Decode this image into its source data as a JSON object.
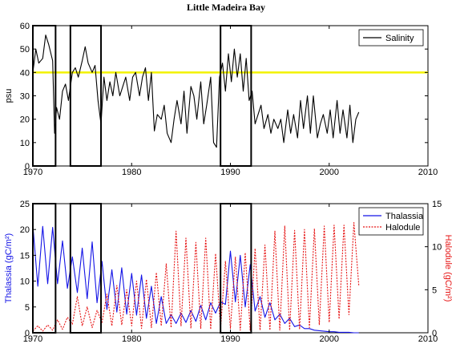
{
  "chart_data": [
    {
      "type": "line",
      "title": "Little Madeira Bay",
      "ylabel": "psu",
      "xlim": [
        1970,
        2010
      ],
      "ylim": [
        0,
        60
      ],
      "xticks": [
        "1970",
        "1980",
        "1990",
        "2000",
        "2010"
      ],
      "yticks": [
        "0",
        "10",
        "20",
        "30",
        "40",
        "50",
        "60"
      ],
      "legend": "top-right",
      "reference_line": {
        "y": 40,
        "color": "#f2f200"
      },
      "highlight_periods": [
        [
          1970,
          1972.3
        ],
        [
          1973.8,
          1976.9
        ],
        [
          1989.0,
          1992.1
        ]
      ],
      "series": [
        {
          "name": "Salinity",
          "color": "#000000",
          "x": [
            1970.0,
            1970.3,
            1970.6,
            1971.0,
            1971.3,
            1971.6,
            1972.0,
            1972.2,
            1972.4,
            1972.7,
            1973.0,
            1973.3,
            1973.6,
            1974.0,
            1974.3,
            1974.6,
            1975.0,
            1975.3,
            1975.6,
            1976.0,
            1976.3,
            1976.6,
            1976.9,
            1977.2,
            1977.5,
            1977.8,
            1978.1,
            1978.4,
            1978.8,
            1979.1,
            1979.4,
            1979.8,
            1980.1,
            1980.4,
            1980.8,
            1981.1,
            1981.4,
            1981.7,
            1982.0,
            1982.3,
            1982.6,
            1983.0,
            1983.3,
            1983.6,
            1984.0,
            1984.3,
            1984.6,
            1985.0,
            1985.3,
            1985.6,
            1986.0,
            1986.3,
            1986.6,
            1987.0,
            1987.3,
            1987.6,
            1988.0,
            1988.3,
            1988.6,
            1988.9,
            1989.2,
            1989.5,
            1989.8,
            1990.1,
            1990.4,
            1990.7,
            1991.0,
            1991.3,
            1991.6,
            1991.9,
            1992.2,
            1992.5,
            1992.8,
            1993.1,
            1993.4,
            1993.8,
            1994.1,
            1994.4,
            1994.8,
            1995.1,
            1995.4,
            1995.8,
            1996.1,
            1996.4,
            1996.8,
            1997.1,
            1997.4,
            1997.8,
            1998.1,
            1998.4,
            1998.8,
            1999.1,
            1999.4,
            1999.8,
            2000.1,
            2000.4,
            2000.8,
            2001.1,
            2001.4,
            2001.8,
            2002.1,
            2002.4,
            2002.7,
            2003.0
          ],
          "y": [
            40,
            50,
            44,
            46,
            56,
            52,
            45,
            14,
            25,
            20,
            32,
            35,
            28,
            40,
            42,
            38,
            45,
            51,
            44,
            40,
            43,
            28,
            18,
            38,
            28,
            36,
            30,
            40,
            30,
            34,
            38,
            28,
            38,
            40,
            30,
            38,
            42,
            28,
            40,
            15,
            22,
            20,
            26,
            14,
            10,
            20,
            28,
            18,
            32,
            14,
            34,
            30,
            20,
            36,
            18,
            26,
            38,
            10,
            8,
            38,
            44,
            32,
            48,
            36,
            50,
            38,
            48,
            32,
            46,
            28,
            32,
            18,
            22,
            26,
            16,
            22,
            14,
            20,
            16,
            20,
            10,
            24,
            14,
            22,
            12,
            28,
            16,
            30,
            14,
            30,
            12,
            18,
            22,
            14,
            24,
            12,
            28,
            14,
            24,
            12,
            26,
            10,
            20,
            23
          ]
        }
      ]
    },
    {
      "type": "line",
      "title": "",
      "ylabel": "Thalassia (gC/m²)",
      "y2label": "Halodule (gC/m²)",
      "xlim": [
        1970,
        2010
      ],
      "ylim": [
        0,
        25
      ],
      "y2lim": [
        0,
        15
      ],
      "xticks": [
        "1970",
        "1980",
        "1990",
        "2000",
        "2010"
      ],
      "yticks": [
        "0",
        "5",
        "10",
        "15",
        "20",
        "25"
      ],
      "y2ticks": [
        "0",
        "5",
        "10",
        "15"
      ],
      "legend": "top-right",
      "highlight_periods": [
        [
          1970,
          1972.3
        ],
        [
          1973.8,
          1976.9
        ],
        [
          1989.0,
          1992.1
        ]
      ],
      "series": [
        {
          "name": "Thalassia",
          "color": "#1414e6",
          "axis": "left",
          "x": [
            1970,
            1970.5,
            1971,
            1971.5,
            1972,
            1972.5,
            1973,
            1973.5,
            1974,
            1974.5,
            1975,
            1975.5,
            1976,
            1976.5,
            1977,
            1977.5,
            1978,
            1978.5,
            1979,
            1979.5,
            1980,
            1980.5,
            1981,
            1981.5,
            1982,
            1982.5,
            1983,
            1983.5,
            1984,
            1984.5,
            1985,
            1985.5,
            1986,
            1986.5,
            1987,
            1987.5,
            1988,
            1988.5,
            1989,
            1989.5,
            1990,
            1990.5,
            1991,
            1991.5,
            1992,
            1992.5,
            1993,
            1993.5,
            1994,
            1994.5,
            1995,
            1995.5,
            1996,
            1996.5,
            1997,
            1997.5,
            1998,
            1998.5,
            1999,
            1999.5,
            2000,
            2000.5,
            2001,
            2001.5,
            2002,
            2002.5,
            2003
          ],
          "y": [
            20.8,
            9.0,
            20.6,
            9.5,
            20.4,
            9.5,
            17.8,
            8.6,
            14.7,
            7.8,
            16.4,
            6.6,
            17.6,
            5.8,
            13.8,
            4.5,
            12.2,
            4.0,
            12.6,
            3.6,
            11.5,
            3.4,
            11.2,
            2.8,
            9.0,
            1.8,
            7.0,
            1.8,
            3.5,
            1.8,
            3.8,
            2.0,
            4.3,
            2.2,
            5.3,
            2.5,
            5.8,
            3.8,
            6.0,
            5.5,
            15.8,
            6.0,
            15.0,
            5.0,
            13.2,
            4.2,
            7.0,
            3.0,
            5.8,
            2.5,
            3.6,
            1.8,
            2.8,
            1.2,
            1.5,
            0.8,
            0.8,
            0.5,
            0.4,
            0.3,
            0.2,
            0.2,
            0.1,
            0.1,
            0.1,
            0.0,
            0.0
          ]
        },
        {
          "name": "Halodule",
          "color": "#e61414",
          "axis": "right",
          "x": [
            1970,
            1970.5,
            1971,
            1971.5,
            1972,
            1972.5,
            1973,
            1973.5,
            1974,
            1974.5,
            1975,
            1975.5,
            1976,
            1976.5,
            1977,
            1977.5,
            1978,
            1978.5,
            1979,
            1979.5,
            1980,
            1980.5,
            1981,
            1981.5,
            1982,
            1982.5,
            1983,
            1983.5,
            1984,
            1984.5,
            1985,
            1985.5,
            1986,
            1986.5,
            1987,
            1987.5,
            1988,
            1988.5,
            1989,
            1989.5,
            1990,
            1990.5,
            1991,
            1991.5,
            1992,
            1992.5,
            1993,
            1993.5,
            1994,
            1994.5,
            1995,
            1995.5,
            1996,
            1996.5,
            1997,
            1997.5,
            1998,
            1998.5,
            1999,
            1999.5,
            2000,
            2000.5,
            2001,
            2001.5,
            2002,
            2002.5,
            2003
          ],
          "y": [
            0.2,
            0.8,
            0.2,
            0.9,
            0.3,
            1.5,
            0.4,
            1.8,
            1.0,
            4.2,
            0.8,
            3.0,
            0.6,
            2.6,
            1.2,
            4.5,
            0.8,
            5.5,
            0.9,
            5.0,
            0.8,
            6.0,
            0.5,
            6.2,
            0.6,
            7.0,
            0.8,
            8.0,
            0.6,
            11.8,
            0.8,
            11.0,
            0.5,
            10.5,
            0.5,
            11.0,
            0.4,
            9.2,
            0.5,
            8.3,
            0.5,
            8.8,
            0.3,
            9.3,
            0.3,
            9.8,
            0.3,
            10.2,
            0.3,
            11.8,
            0.3,
            12.4,
            0.3,
            11.9,
            0.4,
            12.0,
            0.6,
            12.1,
            0.9,
            12.4,
            1.2,
            12.5,
            1.6,
            12.5,
            2.1,
            12.8,
            5.5
          ]
        }
      ]
    }
  ]
}
